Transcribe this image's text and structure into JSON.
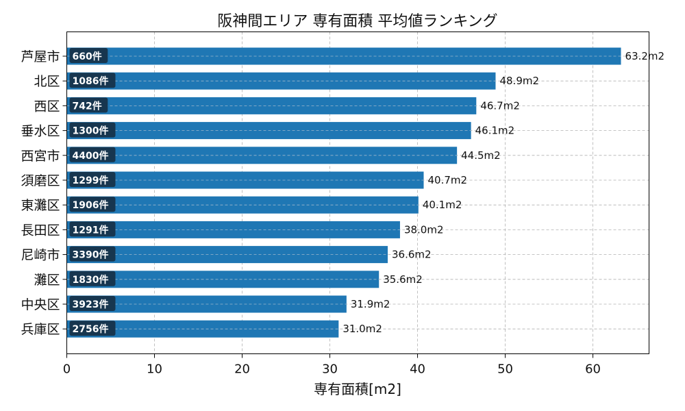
{
  "chart_data": {
    "type": "bar",
    "orientation": "horizontal",
    "title": "阪神間エリア 専有面積 平均値ランキング",
    "xlabel": "専有面積[m2]",
    "ylabel": "",
    "xlim": [
      0,
      66.4
    ],
    "xticks": [
      0,
      10,
      20,
      30,
      40,
      50,
      60
    ],
    "grid": true,
    "categories": [
      "芦屋市",
      "北区",
      "西区",
      "垂水区",
      "西宮市",
      "須磨区",
      "東灘区",
      "長田区",
      "尼崎市",
      "灘区",
      "中央区",
      "兵庫区"
    ],
    "values": [
      63.2,
      48.9,
      46.7,
      46.1,
      44.5,
      40.7,
      40.1,
      38.0,
      36.6,
      35.6,
      31.9,
      31.0
    ],
    "value_labels": [
      "63.2m2",
      "48.9m2",
      "46.7m2",
      "46.1m2",
      "44.5m2",
      "40.7m2",
      "40.1m2",
      "38.0m2",
      "36.6m2",
      "35.6m2",
      "31.9m2",
      "31.0m2"
    ],
    "counts": [
      "660件",
      "1086件",
      "742件",
      "1300件",
      "4400件",
      "1299件",
      "1906件",
      "1291件",
      "3390件",
      "1830件",
      "3923件",
      "2756件"
    ],
    "colors": {
      "bar": "#1f77b4",
      "count_badge": "#17364f",
      "grid": "#b0b0b0"
    }
  }
}
